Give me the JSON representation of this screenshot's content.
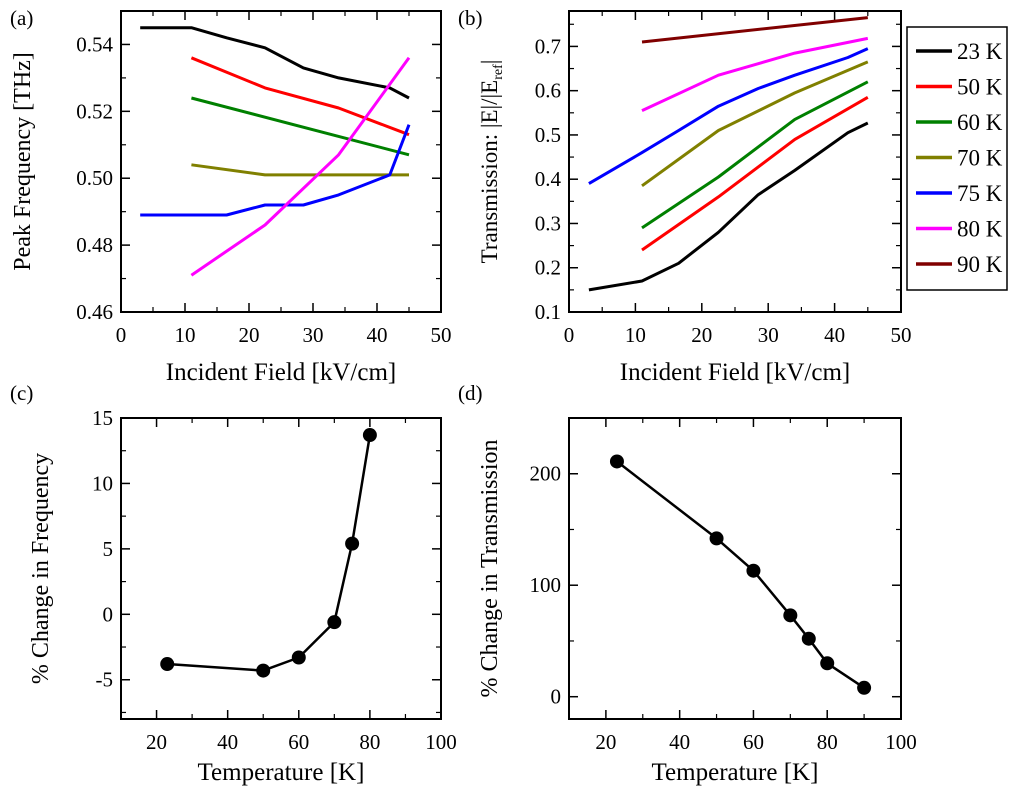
{
  "chart_data": [
    {
      "panel_label": "(a)",
      "type": "line",
      "xlabel": "Incident Field [kV/cm]",
      "ylabel": "Peak Frequency [THz]",
      "xlim": [
        0,
        50
      ],
      "ylim": [
        0.46,
        0.55
      ],
      "xticks": [
        0,
        10,
        20,
        30,
        40,
        50
      ],
      "yticks": [
        0.46,
        0.48,
        0.5,
        0.52,
        0.54
      ],
      "ytick_labels": [
        "0.46",
        "0.48",
        "0.50",
        "0.52",
        "0.54"
      ],
      "markers": false,
      "series": [
        {
          "key": "23K",
          "color": "#000000",
          "x": [
            3,
            11,
            16.5,
            22.5,
            28.5,
            34,
            42,
            45
          ],
          "y": [
            0.545,
            0.545,
            0.542,
            0.539,
            0.533,
            0.53,
            0.527,
            0.524
          ]
        },
        {
          "key": "50K",
          "color": "#ff0000",
          "x": [
            11,
            22.5,
            34,
            45
          ],
          "y": [
            0.536,
            0.527,
            0.521,
            0.513
          ]
        },
        {
          "key": "60K",
          "color": "#008000",
          "x": [
            11,
            45
          ],
          "y": [
            0.524,
            0.507
          ]
        },
        {
          "key": "70K",
          "color": "#808000",
          "x": [
            11,
            22.5,
            34,
            45
          ],
          "y": [
            0.504,
            0.501,
            0.501,
            0.501
          ]
        },
        {
          "key": "75K",
          "color": "#0000ff",
          "x": [
            3,
            11,
            16.5,
            22.5,
            28.5,
            34,
            42,
            45
          ],
          "y": [
            0.489,
            0.489,
            0.489,
            0.492,
            0.492,
            0.495,
            0.501,
            0.516
          ]
        },
        {
          "key": "80K",
          "color": "#ff00ff",
          "x": [
            11,
            22.5,
            34,
            45
          ],
          "y": [
            0.471,
            0.486,
            0.507,
            0.536
          ]
        }
      ]
    },
    {
      "panel_label": "(b)",
      "type": "line",
      "xlabel": "Incident Field [kV/cm]",
      "ylabel_main": "Transmission: |E|/|E",
      "ylabel_sub": "ref",
      "ylabel_end": "|",
      "xlim": [
        0,
        50
      ],
      "ylim": [
        0.1,
        0.78
      ],
      "xticks": [
        0,
        10,
        20,
        30,
        40,
        50
      ],
      "yticks": [
        0.1,
        0.2,
        0.3,
        0.4,
        0.5,
        0.6,
        0.7
      ],
      "ytick_labels": [
        "0.1",
        "0.2",
        "0.3",
        "0.4",
        "0.5",
        "0.6",
        "0.7"
      ],
      "markers": false,
      "series": [
        {
          "key": "23K",
          "color": "#000000",
          "x": [
            3,
            11,
            16.5,
            22.5,
            28.5,
            34,
            42,
            45
          ],
          "y": [
            0.15,
            0.17,
            0.21,
            0.28,
            0.365,
            0.42,
            0.505,
            0.527
          ]
        },
        {
          "key": "50K",
          "color": "#ff0000",
          "x": [
            11,
            22.5,
            34,
            45
          ],
          "y": [
            0.24,
            0.36,
            0.49,
            0.585
          ]
        },
        {
          "key": "60K",
          "color": "#008000",
          "x": [
            11,
            22.5,
            34,
            45
          ],
          "y": [
            0.29,
            0.405,
            0.535,
            0.62
          ]
        },
        {
          "key": "70K",
          "color": "#808000",
          "x": [
            11,
            22.5,
            34,
            45
          ],
          "y": [
            0.385,
            0.51,
            0.595,
            0.665
          ]
        },
        {
          "key": "75K",
          "color": "#0000ff",
          "x": [
            3,
            11,
            16.5,
            22.5,
            28.5,
            34,
            42,
            45
          ],
          "y": [
            0.39,
            0.46,
            0.51,
            0.565,
            0.605,
            0.635,
            0.675,
            0.695
          ]
        },
        {
          "key": "80K",
          "color": "#ff00ff",
          "x": [
            11,
            22.5,
            34,
            45
          ],
          "y": [
            0.555,
            0.635,
            0.685,
            0.718
          ]
        },
        {
          "key": "90K",
          "color": "#800000",
          "x": [
            11,
            45
          ],
          "y": [
            0.71,
            0.765
          ]
        }
      ]
    },
    {
      "panel_label": "(c)",
      "type": "line",
      "xlabel": "Temperature [K]",
      "ylabel": "% Change in Frequency",
      "xlim": [
        10,
        100
      ],
      "ylim": [
        -8,
        15
      ],
      "xticks": [
        20,
        40,
        60,
        80,
        100
      ],
      "yticks": [
        -5,
        0,
        5,
        10,
        15
      ],
      "ytick_labels": [
        "-5",
        "0",
        "5",
        "10",
        "15"
      ],
      "markers": true,
      "series": [
        {
          "key": "pct",
          "color": "#000000",
          "x": [
            23,
            50,
            60,
            70,
            75,
            80
          ],
          "y": [
            -3.8,
            -4.3,
            -3.3,
            -0.6,
            5.4,
            13.7
          ]
        }
      ]
    },
    {
      "panel_label": "(d)",
      "type": "line",
      "xlabel": "Temperature [K]",
      "ylabel": "% Change in Transmission",
      "xlim": [
        10,
        100
      ],
      "ylim": [
        -20,
        250
      ],
      "xticks": [
        20,
        40,
        60,
        80,
        100
      ],
      "yticks": [
        0,
        100,
        200
      ],
      "ytick_labels": [
        "0",
        "100",
        "200"
      ],
      "markers": true,
      "series": [
        {
          "key": "pct",
          "color": "#000000",
          "x": [
            23,
            50,
            60,
            70,
            75,
            80,
            90
          ],
          "y": [
            211,
            142,
            113,
            73,
            52,
            30,
            8
          ]
        }
      ]
    }
  ],
  "legend": {
    "placement": "right",
    "entries": [
      {
        "label": "23 K",
        "color": "#000000"
      },
      {
        "label": "50 K",
        "color": "#ff0000"
      },
      {
        "label": "60 K",
        "color": "#008000"
      },
      {
        "label": "70 K",
        "color": "#808000"
      },
      {
        "label": "75 K",
        "color": "#0000ff"
      },
      {
        "label": "80 K",
        "color": "#ff00ff"
      },
      {
        "label": "90 K",
        "color": "#800000"
      }
    ]
  }
}
